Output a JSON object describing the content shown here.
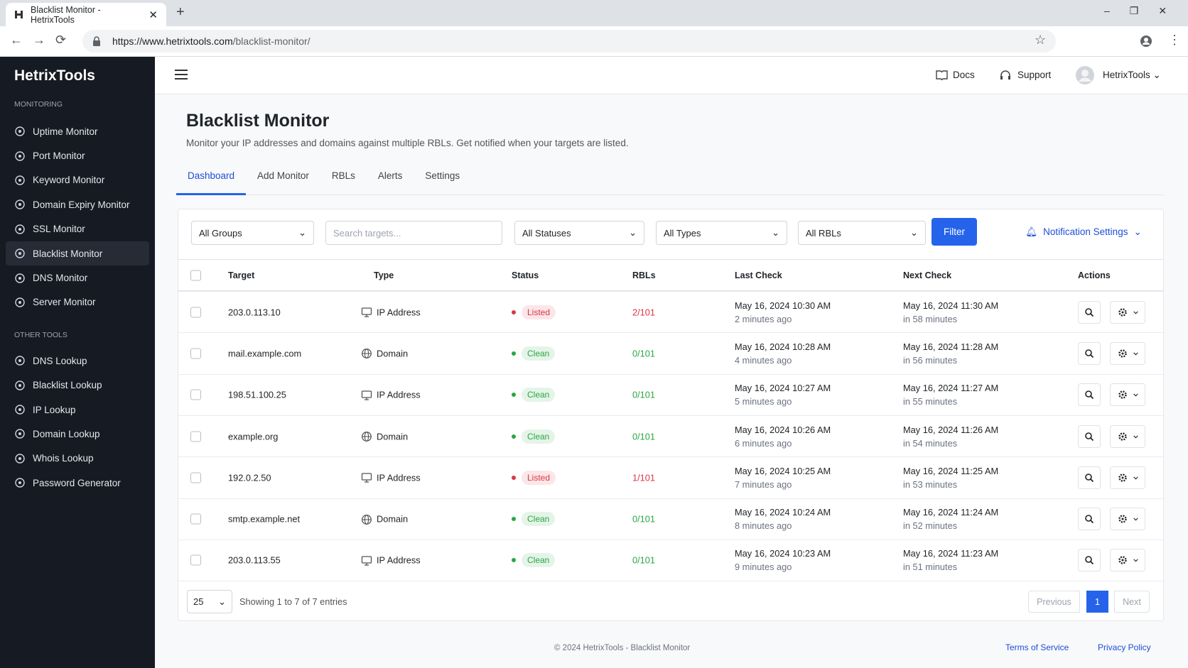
{
  "browser": {
    "tab_title": "Blacklist Monitor - HetrixTools",
    "url_host": "https://www.hetrixtools.com",
    "url_path": "/blacklist-monitor/"
  },
  "sidebar": {
    "brand": "HetrixTools",
    "sections": [
      {
        "heading": "MONITORING",
        "items": [
          "Uptime Monitor",
          "Port Monitor",
          "Keyword Monitor",
          "Domain Expiry Monitor",
          "SSL Monitor",
          "Blacklist Monitor",
          "DNS Monitor",
          "Server Monitor"
        ]
      },
      {
        "heading": "OTHER TOOLS",
        "items": [
          "DNS Lookup",
          "Blacklist Lookup",
          "IP Lookup",
          "Domain Lookup",
          "Whois Lookup",
          "Password Generator"
        ]
      }
    ]
  },
  "topbar": {
    "docs": "Docs",
    "support": "Support",
    "user": "HetrixTools"
  },
  "header": {
    "title": "Blacklist Monitor",
    "subtitle": "Monitor your IP addresses and domains against multiple RBLs. Get notified when your targets are listed."
  },
  "tabs": [
    "Dashboard",
    "Add Monitor",
    "RBLs",
    "Alerts",
    "Settings"
  ],
  "filters": {
    "groups": "All Groups",
    "search": "Search targets...",
    "statuses": "All Statuses",
    "types": "All Types",
    "rbls": "All RBLs",
    "button": "Filter",
    "notifications": "Notification Settings"
  },
  "table": {
    "columns": [
      "Target",
      "Type",
      "Status",
      "RBLs",
      "Last Check",
      "Next Check",
      "Actions"
    ],
    "rows": [
      {
        "target": "203.0.113.10",
        "type": "IP Address",
        "status": "Listed",
        "color": "#dc3545",
        "rbls": "2/101",
        "last_check": "May 16, 2024 10:30 AM",
        "last_ago": "2 minutes ago",
        "next_check": "May 16, 2024 11:30 AM",
        "next_in": "in 58 minutes"
      },
      {
        "target": "mail.example.com",
        "type": "Domain",
        "status": "Clean",
        "color": "#28a745",
        "rbls": "0/101",
        "last_check": "May 16, 2024 10:28 AM",
        "last_ago": "4 minutes ago",
        "next_check": "May 16, 2024 11:28 AM",
        "next_in": "in 56 minutes"
      },
      {
        "target": "198.51.100.25",
        "type": "IP Address",
        "status": "Clean",
        "color": "#28a745",
        "rbls": "0/101",
        "last_check": "May 16, 2024 10:27 AM",
        "last_ago": "5 minutes ago",
        "next_check": "May 16, 2024 11:27 AM",
        "next_in": "in 55 minutes"
      },
      {
        "target": "example.org",
        "type": "Domain",
        "status": "Clean",
        "color": "#28a745",
        "rbls": "0/101",
        "last_check": "May 16, 2024 10:26 AM",
        "last_ago": "6 minutes ago",
        "next_check": "May 16, 2024 11:26 AM",
        "next_in": "in 54 minutes"
      },
      {
        "target": "192.0.2.50",
        "type": "IP Address",
        "status": "Listed",
        "color": "#dc3545",
        "rbls": "1/101",
        "last_check": "May 16, 2024 10:25 AM",
        "last_ago": "7 minutes ago",
        "next_check": "May 16, 2024 11:25 AM",
        "next_in": "in 53 minutes"
      },
      {
        "target": "smtp.example.net",
        "type": "Domain",
        "status": "Clean",
        "color": "#28a745",
        "rbls": "0/101",
        "last_check": "May 16, 2024 10:24 AM",
        "last_ago": "8 minutes ago",
        "next_check": "May 16, 2024 11:24 AM",
        "next_in": "in 52 minutes"
      },
      {
        "target": "203.0.113.55",
        "type": "IP Address",
        "status": "Clean",
        "color": "#28a745",
        "rbls": "0/101",
        "last_check": "May 16, 2024 10:23 AM",
        "last_ago": "9 minutes ago",
        "next_check": "May 16, 2024 11:23 AM",
        "next_in": "in 51 minutes"
      }
    ]
  },
  "pagination": {
    "page_size": "25",
    "info": "Showing 1 to 7 of 7 entries",
    "previous": "Previous",
    "page": "1",
    "next": "Next"
  },
  "footer": {
    "copyright": "© 2024 HetrixTools - Blacklist Monitor",
    "terms": "Terms of Service",
    "privacy": "Privacy Policy"
  }
}
